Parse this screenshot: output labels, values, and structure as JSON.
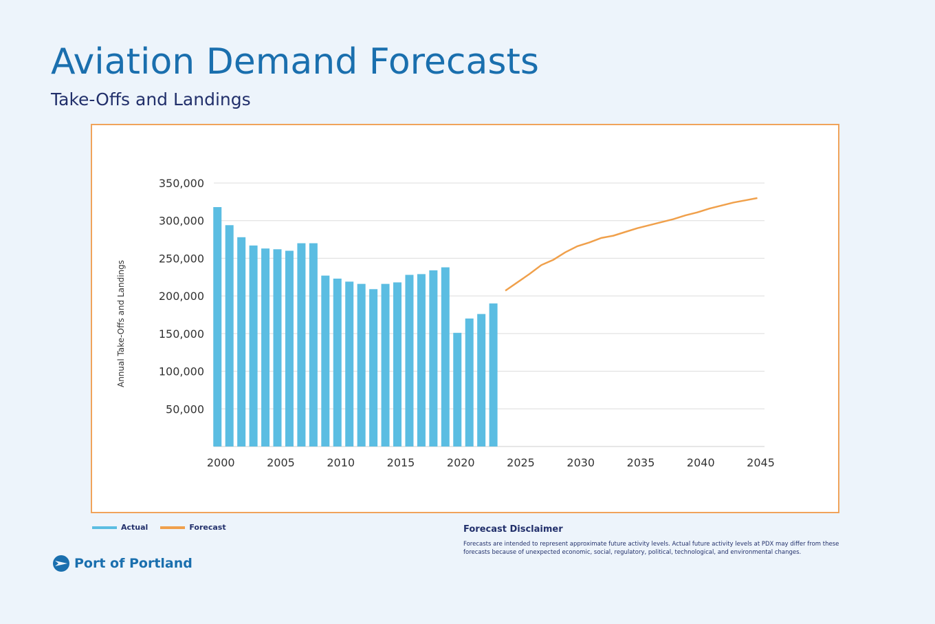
{
  "header": {
    "title": "Aviation Demand Forecasts",
    "subtitle": "Take-Offs and Landings"
  },
  "chart_data": {
    "type": "bar",
    "y_label": "Annual Take-Offs and Landings",
    "xlim": [
      1999.7,
      2045.6
    ],
    "xticks": [
      2000,
      2005,
      2010,
      2015,
      2020,
      2025,
      2030,
      2035,
      2040,
      2045
    ],
    "ylim": [
      0,
      350000
    ],
    "yticks": [
      {
        "value": 50000,
        "label": "50,000"
      },
      {
        "value": 100000,
        "label": "100,000"
      },
      {
        "value": 150000,
        "label": "150,000"
      },
      {
        "value": 200000,
        "label": "200,000"
      },
      {
        "value": 250000,
        "label": "250,000"
      },
      {
        "value": 300000,
        "label": "300,000"
      },
      {
        "value": 350000,
        "label": "350,000"
      }
    ],
    "grid": true,
    "series": [
      {
        "name": "Actual",
        "type": "bar",
        "color": "#5bbde2",
        "x": [
          2000,
          2001,
          2002,
          2003,
          2004,
          2005,
          2006,
          2007,
          2008,
          2009,
          2010,
          2011,
          2012,
          2013,
          2014,
          2015,
          2016,
          2017,
          2018,
          2019,
          2020,
          2021,
          2022,
          2023
        ],
        "values": [
          318000,
          294000,
          278000,
          267000,
          263000,
          262000,
          260000,
          270000,
          270000,
          227000,
          223000,
          219000,
          216000,
          209000,
          216000,
          218000,
          228000,
          229000,
          234000,
          238000,
          151000,
          170000,
          176000,
          190000
        ]
      },
      {
        "name": "Forecast",
        "type": "line",
        "color": "#f0a04b",
        "x": [
          2024,
          2025,
          2026,
          2027,
          2028,
          2029,
          2030,
          2031,
          2032,
          2033,
          2034,
          2035,
          2036,
          2037,
          2038,
          2039,
          2040,
          2041,
          2042,
          2043,
          2044,
          2045
        ],
        "values": [
          207000,
          218000,
          229000,
          241000,
          248000,
          258000,
          266000,
          271000,
          277000,
          280000,
          285000,
          290000,
          294000,
          298000,
          302000,
          307000,
          311000,
          316000,
          320000,
          324000,
          327000,
          330000
        ]
      }
    ]
  },
  "disclaimer": {
    "title": "Forecast Disclaimer",
    "text": "Forecasts are intended to represent approximate future activity levels. Actual future activity levels at PDX may differ from these forecasts because of unexpected economic, social, regulatory, political, technological, and environmental changes."
  },
  "logo": {
    "text": "Port of Portland"
  }
}
